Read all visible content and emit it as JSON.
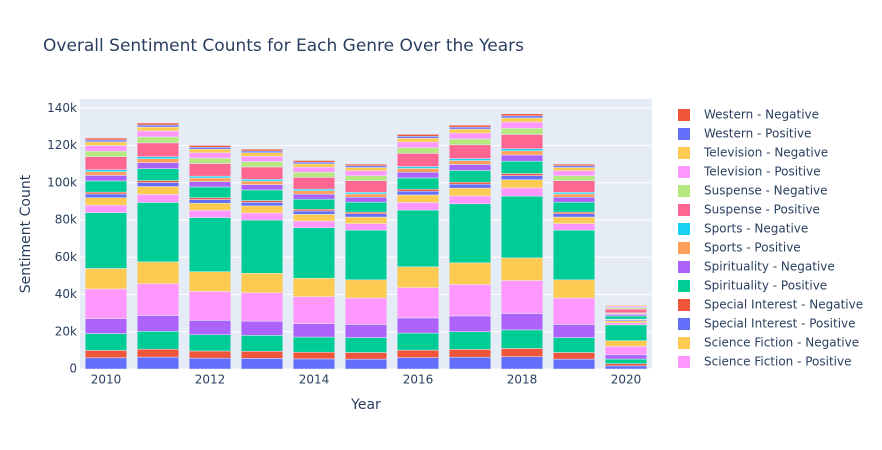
{
  "chart_data": {
    "type": "bar",
    "barmode": "stack",
    "title": "Overall Sentiment Counts for Each Genre Over the Years",
    "xlabel": "Year",
    "ylabel": "Sentiment Count",
    "x": [
      2010,
      2011,
      2012,
      2013,
      2014,
      2015,
      2016,
      2017,
      2018,
      2019,
      2020
    ],
    "xlim": [
      2009.5,
      2020.5
    ],
    "xticks": [
      2010,
      2012,
      2014,
      2016,
      2018,
      2020
    ],
    "ylim": [
      0,
      145000
    ],
    "yticks": [
      0,
      {
        "value": 20000,
        "label": "20k"
      },
      {
        "value": 40000,
        "label": "40k"
      },
      {
        "value": 60000,
        "label": "60k"
      },
      {
        "value": 80000,
        "label": "80k"
      },
      {
        "value": 100000,
        "label": "100k"
      },
      {
        "value": 120000,
        "label": "120k"
      },
      {
        "value": 140000,
        "label": "140k"
      }
    ],
    "grid": true,
    "legend_position": "right",
    "series": [
      {
        "color": "#636efa",
        "values": [
          6000,
          6390,
          5810,
          5710,
          5420,
          5320,
          6100,
          6340,
          6630,
          5320,
          1690
        ]
      },
      {
        "color": "#EF553B",
        "values": [
          4000,
          4260,
          3870,
          3810,
          3610,
          3550,
          4060,
          4220,
          4420,
          3550,
          1130
        ]
      },
      {
        "color": "#00cc96",
        "values": [
          9000,
          9590,
          8710,
          8570,
          8130,
          7980,
          9140,
          9500,
          9950,
          7980,
          2540
        ]
      },
      {
        "color": "#ab63fa",
        "values": [
          8000,
          8520,
          7740,
          7620,
          7220,
          7100,
          8130,
          8450,
          8840,
          7100,
          2260
        ]
      },
      {
        "color": "#FF97FF",
        "values": [
          16000,
          17040,
          15490,
          15230,
          14450,
          14190,
          16260,
          16900,
          17680,
          14190,
          4510
        ]
      },
      {
        "color": "#FECB52",
        "values": [
          11000,
          11720,
          10650,
          10470,
          9930,
          9760,
          11180,
          11620,
          12160,
          9760,
          3100
        ]
      },
      {
        "color": "#00cc96",
        "values": [
          30000,
          31950,
          29040,
          28560,
          27090,
          26610,
          30480,
          31680,
          33150,
          26610,
          8460
        ]
      },
      {
        "name": "Science Fiction - Positive",
        "color": "#FF97FF",
        "values": [
          4000,
          4260,
          3870,
          3810,
          3610,
          3550,
          4060,
          4220,
          4420,
          3550,
          1130
        ]
      },
      {
        "name": "Science Fiction - Negative",
        "color": "#FECB52",
        "values": [
          4000,
          4260,
          3870,
          3810,
          3610,
          3550,
          4060,
          4220,
          4420,
          3550,
          1130
        ]
      },
      {
        "name": "Special Interest - Positive",
        "color": "#636efa",
        "values": [
          2000,
          2130,
          1940,
          1900,
          1810,
          1770,
          2030,
          2110,
          2210,
          1770,
          560
        ]
      },
      {
        "name": "Special Interest - Negative",
        "color": "#EF553B",
        "values": [
          1000,
          1070,
          970,
          950,
          900,
          890,
          1020,
          1060,
          1110,
          890,
          280
        ]
      },
      {
        "name": "Spirituality - Positive",
        "color": "#00cc96",
        "values": [
          6000,
          6390,
          5810,
          5710,
          5420,
          5320,
          6100,
          6340,
          6630,
          5320,
          1690
        ]
      },
      {
        "name": "Spirituality - Negative",
        "color": "#ab63fa",
        "values": [
          3000,
          3200,
          2900,
          2860,
          2710,
          2660,
          3050,
          3170,
          3320,
          2660,
          850
        ]
      },
      {
        "name": "Sports - Positive",
        "color": "#FFA15A",
        "values": [
          2000,
          2130,
          1940,
          1900,
          1810,
          1770,
          2030,
          2110,
          2210,
          1770,
          560
        ]
      },
      {
        "name": "Sports - Negative",
        "color": "#19d3f3",
        "values": [
          1000,
          1070,
          970,
          950,
          900,
          890,
          1020,
          1060,
          1110,
          890,
          280
        ]
      },
      {
        "name": "Suspense - Positive",
        "color": "#FF6692",
        "values": [
          7000,
          7460,
          6780,
          6660,
          6320,
          6210,
          7110,
          7390,
          7740,
          6210,
          1970
        ]
      },
      {
        "name": "Suspense - Negative",
        "color": "#B6E880",
        "values": [
          3000,
          3200,
          2900,
          2860,
          2710,
          2660,
          3050,
          3170,
          3320,
          2660,
          850
        ]
      },
      {
        "name": "Television - Positive",
        "color": "#FF97FF",
        "values": [
          3000,
          3200,
          2900,
          2860,
          2710,
          2660,
          3050,
          3170,
          3320,
          2660,
          850
        ]
      },
      {
        "name": "Television - Negative",
        "color": "#FECB52",
        "values": [
          2000,
          2130,
          1940,
          1900,
          1810,
          1770,
          2030,
          2110,
          2210,
          1770,
          560
        ]
      },
      {
        "name": "Western - Positive",
        "color": "#636efa",
        "values": [
          1000,
          1070,
          970,
          950,
          900,
          890,
          1020,
          1060,
          1110,
          890,
          280
        ]
      },
      {
        "name": "Western - Negative",
        "color": "#EF553B",
        "values": [
          1000,
          1070,
          970,
          950,
          900,
          890,
          1020,
          1060,
          1110,
          890,
          280
        ]
      }
    ]
  }
}
